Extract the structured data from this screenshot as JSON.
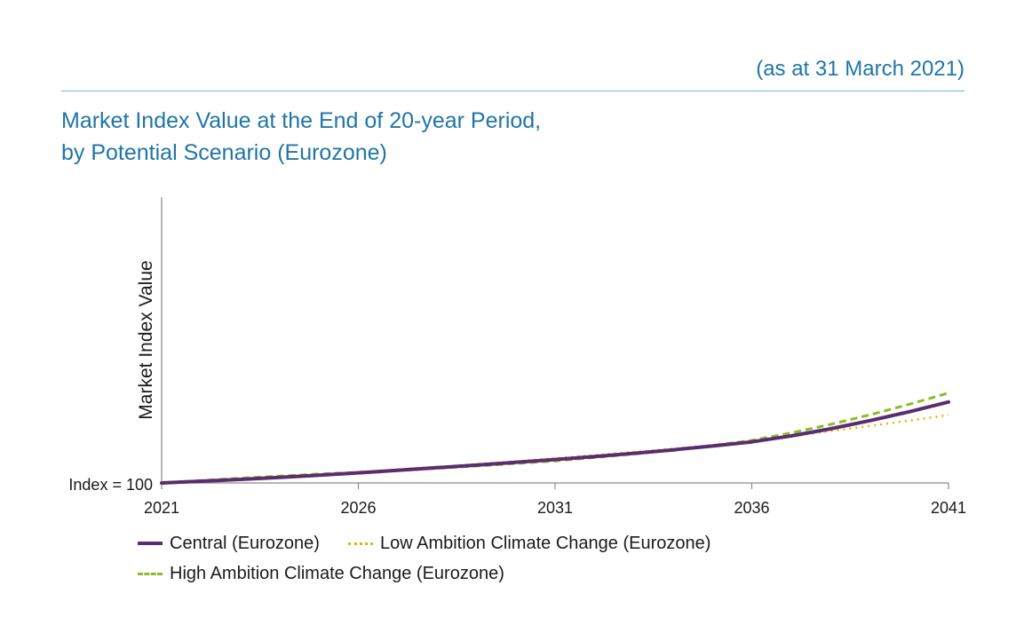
{
  "header": {
    "date_note": "(as at 31 March 2021)",
    "title_line1": "Market Index Value at the End of 20-year Period,",
    "title_line2": "by Potential Scenario (Eurozone)"
  },
  "chart_data": {
    "type": "line",
    "ylabel": "Market Index Value",
    "ytick_label": "Index = 100",
    "x": [
      2021,
      2022,
      2023,
      2024,
      2025,
      2026,
      2027,
      2028,
      2029,
      2030,
      2031,
      2032,
      2033,
      2034,
      2035,
      2036,
      2037,
      2038,
      2039,
      2040,
      2041
    ],
    "xticks": [
      "2021",
      "2026",
      "2031",
      "2036",
      "2041"
    ],
    "xlim": [
      2021,
      2041
    ],
    "ylim": [
      100,
      340
    ],
    "grid": false,
    "legend_position": "bottom",
    "series": [
      {
        "name": "Central (Eurozone)",
        "style": "solid",
        "color": "#5b2d6e",
        "values": [
          100,
          101.5,
          103,
          104.7,
          106.5,
          108.5,
          110.6,
          112.8,
          115,
          117.3,
          119.7,
          122.2,
          124.9,
          127.8,
          131,
          134.5,
          139.5,
          145.5,
          152.3,
          159.8,
          168
        ]
      },
      {
        "name": "Low Ambition Climate Change (Eurozone)",
        "style": "dotted",
        "color": "#e5b300",
        "values": [
          100,
          101.8,
          103.5,
          105.3,
          107.2,
          109.2,
          111.3,
          113.5,
          115.8,
          118.2,
          120.7,
          123.3,
          126,
          128.8,
          131.8,
          135,
          139.2,
          143.5,
          147.9,
          152.4,
          157
        ]
      },
      {
        "name": "High Ambition Climate Change (Eurozone)",
        "style": "dashed",
        "color": "#8cbc2c",
        "values": [
          100,
          102,
          104,
          105.8,
          107.5,
          109,
          110.5,
          112.3,
          114.2,
          116.3,
          118.5,
          121.3,
          124.3,
          127.6,
          131.3,
          135.8,
          142,
          149.2,
          157.2,
          166,
          175.5
        ]
      }
    ]
  }
}
